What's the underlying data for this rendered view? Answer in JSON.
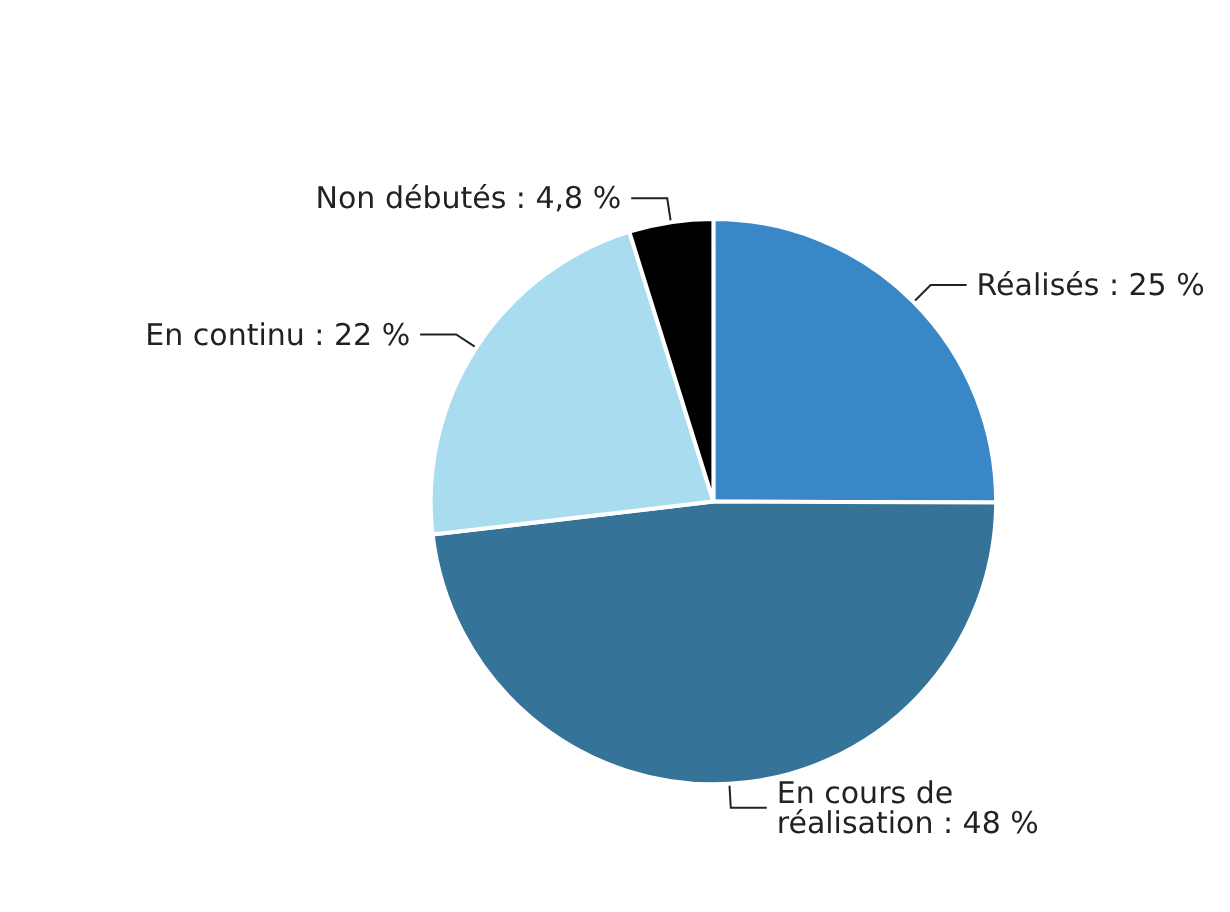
{
  "chart_data": {
    "type": "pie",
    "categories": [
      "Réalisés",
      "En cours de réalisation",
      "En continu",
      "Non débutés"
    ],
    "values": [
      25,
      48,
      22,
      4.8
    ],
    "value_labels": [
      "25 %",
      "48 %",
      "22 %",
      "4,8 %"
    ],
    "colors": [
      "#3a87c8",
      "#357398",
      "#aadcef",
      "#000000"
    ],
    "legend": false
  }
}
